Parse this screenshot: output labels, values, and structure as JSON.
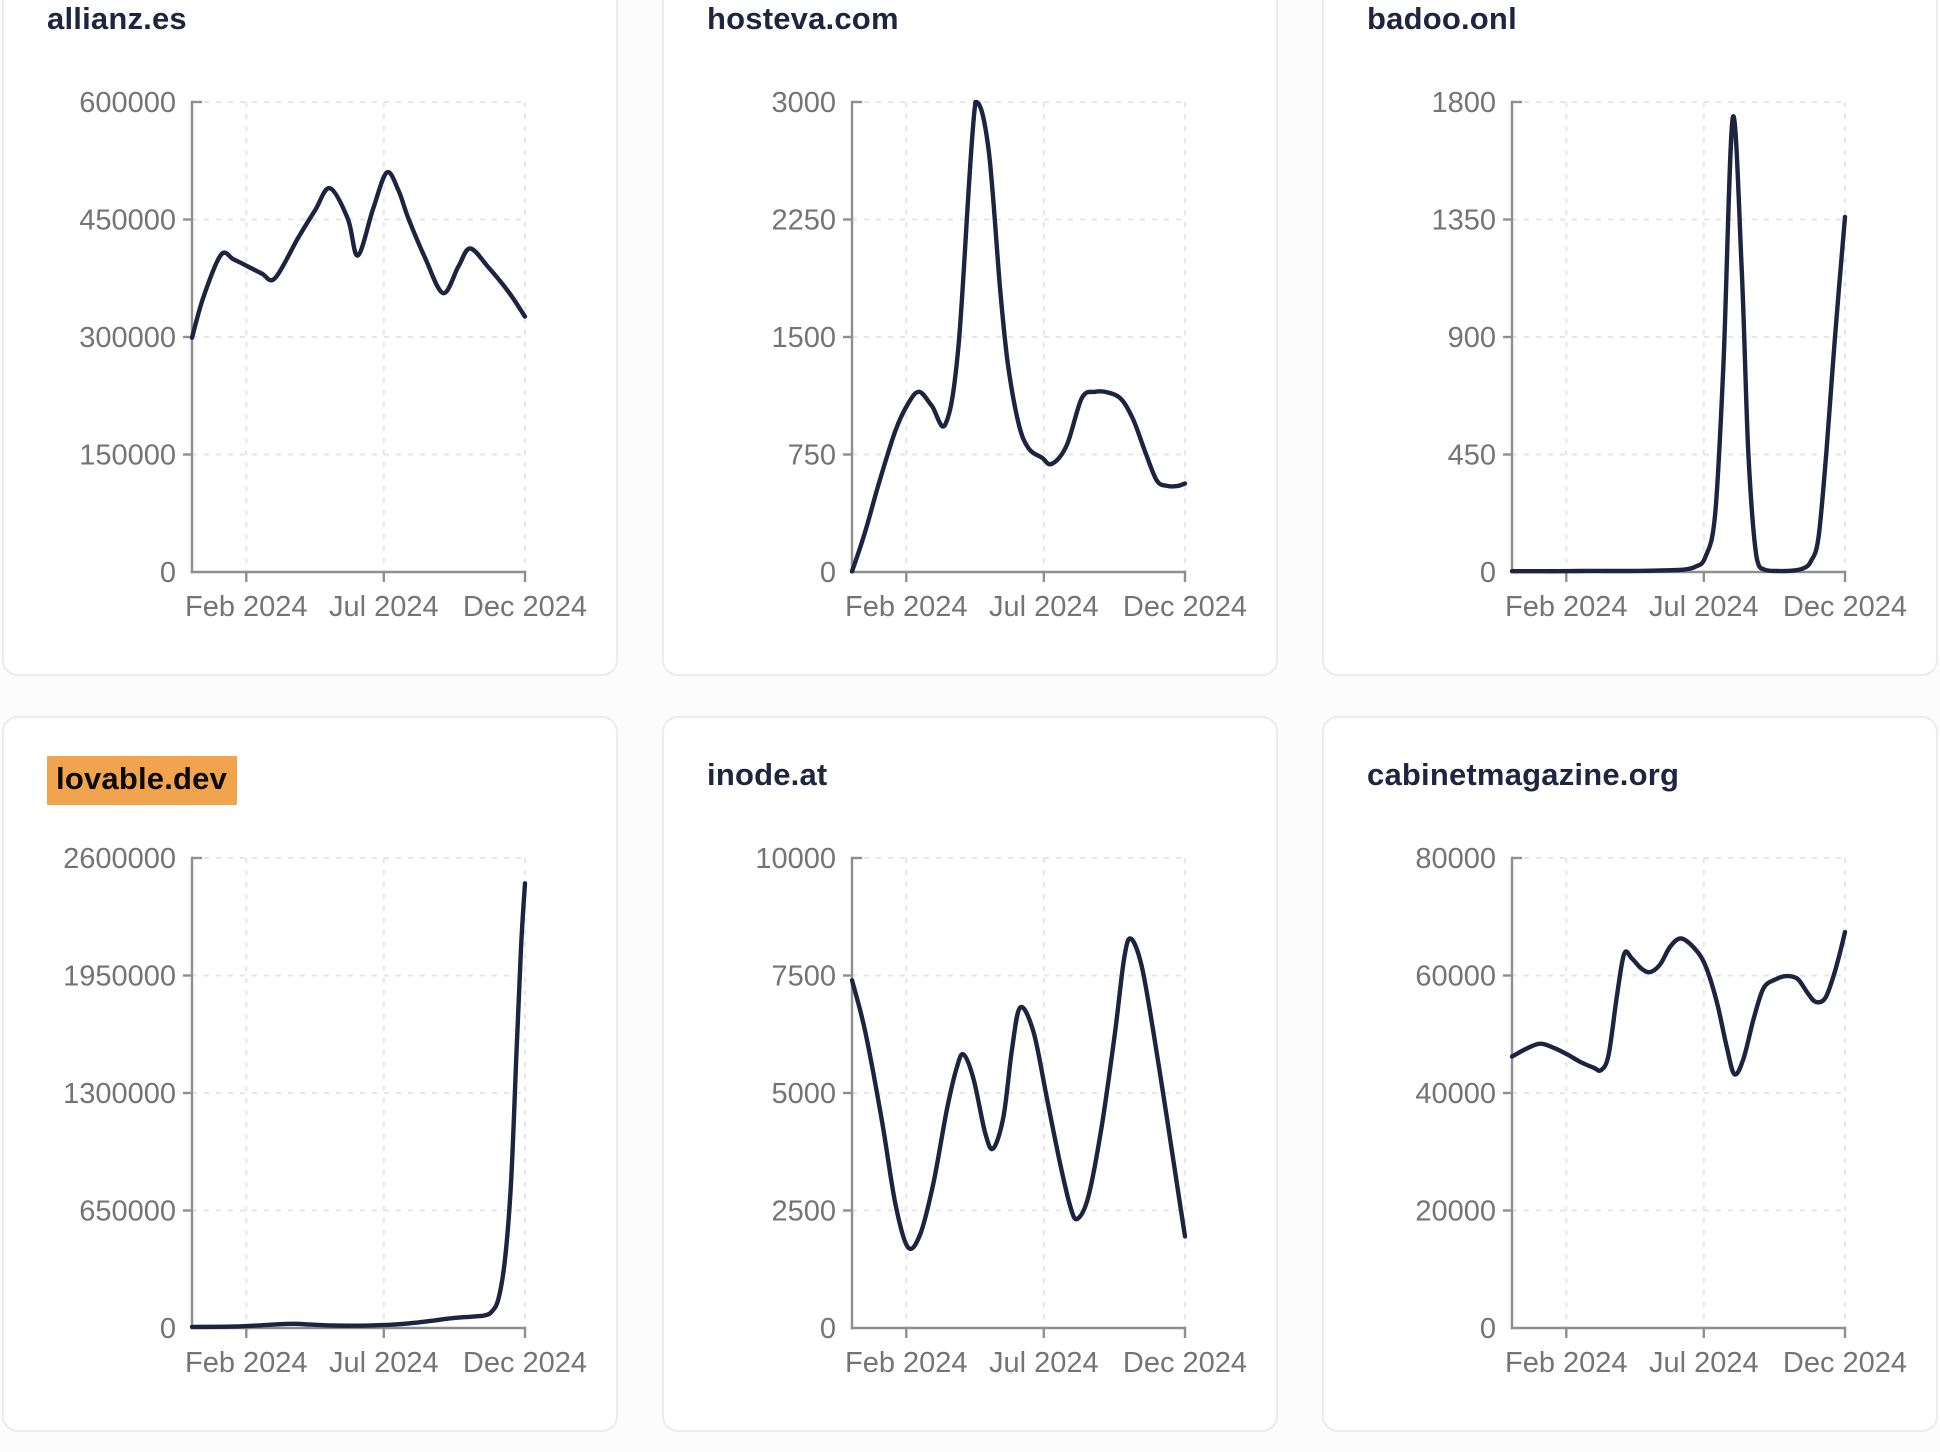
{
  "page": {
    "background": "#fcfcfd",
    "card_background": "#ffffff",
    "card_border_color": "#ececef",
    "line_color": "#1d2440",
    "title_color": "#1f2540",
    "axis_color": "#8f8f8f",
    "tick_label_color": "#747478",
    "grid_color": "#e6e6e9",
    "highlight_color": "#f2a34e"
  },
  "x_axis": {
    "tick_labels": [
      "Feb 2024",
      "Jul 2024",
      "Dec 2024"
    ],
    "tick_positions": [
      0.163,
      0.576,
      1.0
    ]
  },
  "chart_data": [
    {
      "type": "line",
      "title": "allianz.es",
      "highlighted": false,
      "ylim": [
        0,
        600000
      ],
      "y_ticks": [
        600000,
        450000,
        300000,
        150000,
        0
      ],
      "x_tick_labels": [
        "Feb 2024",
        "Jul 2024",
        "Dec 2024"
      ],
      "points": [
        [
          0,
          299000
        ],
        [
          0.035,
          352000
        ],
        [
          0.087,
          405000
        ],
        [
          0.125,
          399000
        ],
        [
          0.168,
          390000
        ],
        [
          0.21,
          381000
        ],
        [
          0.249,
          375000
        ],
        [
          0.318,
          426000
        ],
        [
          0.37,
          462000
        ],
        [
          0.414,
          490000
        ],
        [
          0.468,
          451000
        ],
        [
          0.498,
          404000
        ],
        [
          0.544,
          464000
        ],
        [
          0.585,
          510000
        ],
        [
          0.62,
          487000
        ],
        [
          0.65,
          451000
        ],
        [
          0.7,
          401000
        ],
        [
          0.754,
          356000
        ],
        [
          0.8,
          390000
        ],
        [
          0.835,
          413000
        ],
        [
          0.89,
          389000
        ],
        [
          0.95,
          358000
        ],
        [
          1,
          326000
        ]
      ]
    },
    {
      "type": "line",
      "title": "hosteva.com",
      "highlighted": false,
      "ylim": [
        0,
        3000
      ],
      "y_ticks": [
        3000,
        2250,
        1500,
        750,
        0
      ],
      "x_tick_labels": [
        "Feb 2024",
        "Jul 2024",
        "Dec 2024"
      ],
      "points": [
        [
          0,
          0
        ],
        [
          0.04,
          260
        ],
        [
          0.08,
          560
        ],
        [
          0.13,
          900
        ],
        [
          0.17,
          1080
        ],
        [
          0.202,
          1150
        ],
        [
          0.24,
          1060
        ],
        [
          0.281,
          945
        ],
        [
          0.32,
          1450
        ],
        [
          0.371,
          3000
        ],
        [
          0.41,
          2700
        ],
        [
          0.445,
          1800
        ],
        [
          0.468,
          1330
        ],
        [
          0.5,
          950
        ],
        [
          0.53,
          790
        ],
        [
          0.57,
          730
        ],
        [
          0.6,
          690
        ],
        [
          0.645,
          810
        ],
        [
          0.69,
          1110
        ],
        [
          0.73,
          1150
        ],
        [
          0.77,
          1145
        ],
        [
          0.81,
          1100
        ],
        [
          0.845,
          970
        ],
        [
          0.88,
          770
        ],
        [
          0.915,
          585
        ],
        [
          0.945,
          550
        ],
        [
          0.975,
          548
        ],
        [
          1,
          565
        ]
      ]
    },
    {
      "type": "line",
      "title": "badoo.onl",
      "highlighted": false,
      "ylim": [
        0,
        1800
      ],
      "y_ticks": [
        1800,
        1350,
        900,
        450,
        0
      ],
      "x_tick_labels": [
        "Feb 2024",
        "Jul 2024",
        "Dec 2024"
      ],
      "points": [
        [
          0,
          3
        ],
        [
          0.07,
          3
        ],
        [
          0.14,
          3
        ],
        [
          0.21,
          4
        ],
        [
          0.28,
          4
        ],
        [
          0.35,
          4
        ],
        [
          0.42,
          5
        ],
        [
          0.48,
          7
        ],
        [
          0.52,
          10
        ],
        [
          0.55,
          20
        ],
        [
          0.58,
          55
        ],
        [
          0.61,
          220
        ],
        [
          0.635,
          800
        ],
        [
          0.663,
          1740
        ],
        [
          0.69,
          1150
        ],
        [
          0.71,
          450
        ],
        [
          0.734,
          60
        ],
        [
          0.76,
          8
        ],
        [
          0.8,
          4
        ],
        [
          0.84,
          5
        ],
        [
          0.875,
          14
        ],
        [
          0.897,
          40
        ],
        [
          0.92,
          130
        ],
        [
          0.944,
          460
        ],
        [
          0.97,
          900
        ],
        [
          1,
          1360
        ]
      ]
    },
    {
      "type": "line",
      "title": "lovable.dev",
      "highlighted": true,
      "ylim": [
        0,
        2600000
      ],
      "y_ticks": [
        2600000,
        1950000,
        1300000,
        650000,
        0
      ],
      "x_tick_labels": [
        "Feb 2024",
        "Jul 2024",
        "Dec 2024"
      ],
      "points": [
        [
          0,
          6000
        ],
        [
          0.07,
          6500
        ],
        [
          0.14,
          9000
        ],
        [
          0.21,
          15000
        ],
        [
          0.27,
          21500
        ],
        [
          0.31,
          23500
        ],
        [
          0.36,
          19000
        ],
        [
          0.42,
          14000
        ],
        [
          0.48,
          12500
        ],
        [
          0.54,
          14500
        ],
        [
          0.6,
          18500
        ],
        [
          0.66,
          27000
        ],
        [
          0.72,
          40000
        ],
        [
          0.77,
          52000
        ],
        [
          0.81,
          59000
        ],
        [
          0.85,
          64000
        ],
        [
          0.88,
          70000
        ],
        [
          0.9,
          90000
        ],
        [
          0.92,
          160000
        ],
        [
          0.94,
          380000
        ],
        [
          0.958,
          800000
        ],
        [
          0.974,
          1500000
        ],
        [
          0.988,
          2100000
        ],
        [
          1,
          2460000
        ]
      ]
    },
    {
      "type": "line",
      "title": "inode.at",
      "highlighted": false,
      "ylim": [
        0,
        10000
      ],
      "y_ticks": [
        10000,
        7500,
        5000,
        2500,
        0
      ],
      "x_tick_labels": [
        "Feb 2024",
        "Jul 2024",
        "Dec 2024"
      ],
      "points": [
        [
          0,
          7400
        ],
        [
          0.04,
          6300
        ],
        [
          0.09,
          4400
        ],
        [
          0.13,
          2650
        ],
        [
          0.168,
          1720
        ],
        [
          0.205,
          2000
        ],
        [
          0.245,
          3100
        ],
        [
          0.285,
          4650
        ],
        [
          0.315,
          5550
        ],
        [
          0.335,
          5820
        ],
        [
          0.365,
          5300
        ],
        [
          0.4,
          4150
        ],
        [
          0.424,
          3820
        ],
        [
          0.455,
          4500
        ],
        [
          0.48,
          5900
        ],
        [
          0.505,
          6820
        ],
        [
          0.545,
          6300
        ],
        [
          0.585,
          4900
        ],
        [
          0.625,
          3500
        ],
        [
          0.655,
          2600
        ],
        [
          0.676,
          2320
        ],
        [
          0.71,
          2800
        ],
        [
          0.75,
          4300
        ],
        [
          0.79,
          6300
        ],
        [
          0.818,
          7900
        ],
        [
          0.838,
          8280
        ],
        [
          0.87,
          7700
        ],
        [
          0.905,
          6300
        ],
        [
          0.945,
          4500
        ],
        [
          0.975,
          3100
        ],
        [
          1,
          1950
        ]
      ]
    },
    {
      "type": "line",
      "title": "cabinetmagazine.org",
      "highlighted": false,
      "ylim": [
        0,
        80000
      ],
      "y_ticks": [
        80000,
        60000,
        40000,
        20000,
        0
      ],
      "x_tick_labels": [
        "Feb 2024",
        "Jul 2024",
        "Dec 2024"
      ],
      "points": [
        [
          0,
          46200
        ],
        [
          0.045,
          47600
        ],
        [
          0.085,
          48400
        ],
        [
          0.125,
          47700
        ],
        [
          0.165,
          46600
        ],
        [
          0.205,
          45300
        ],
        [
          0.245,
          44300
        ],
        [
          0.268,
          43900
        ],
        [
          0.29,
          46500
        ],
        [
          0.315,
          56500
        ],
        [
          0.337,
          63700
        ],
        [
          0.36,
          62900
        ],
        [
          0.39,
          61100
        ],
        [
          0.416,
          60600
        ],
        [
          0.445,
          61900
        ],
        [
          0.475,
          64900
        ],
        [
          0.507,
          66300
        ],
        [
          0.545,
          64800
        ],
        [
          0.58,
          61800
        ],
        [
          0.615,
          55500
        ],
        [
          0.645,
          47800
        ],
        [
          0.668,
          43200
        ],
        [
          0.695,
          45800
        ],
        [
          0.725,
          52500
        ],
        [
          0.755,
          57800
        ],
        [
          0.79,
          59300
        ],
        [
          0.825,
          59900
        ],
        [
          0.858,
          59400
        ],
        [
          0.888,
          57000
        ],
        [
          0.912,
          55500
        ],
        [
          0.94,
          56100
        ],
        [
          0.965,
          59800
        ],
        [
          0.985,
          63900
        ],
        [
          1,
          67400
        ]
      ]
    }
  ]
}
